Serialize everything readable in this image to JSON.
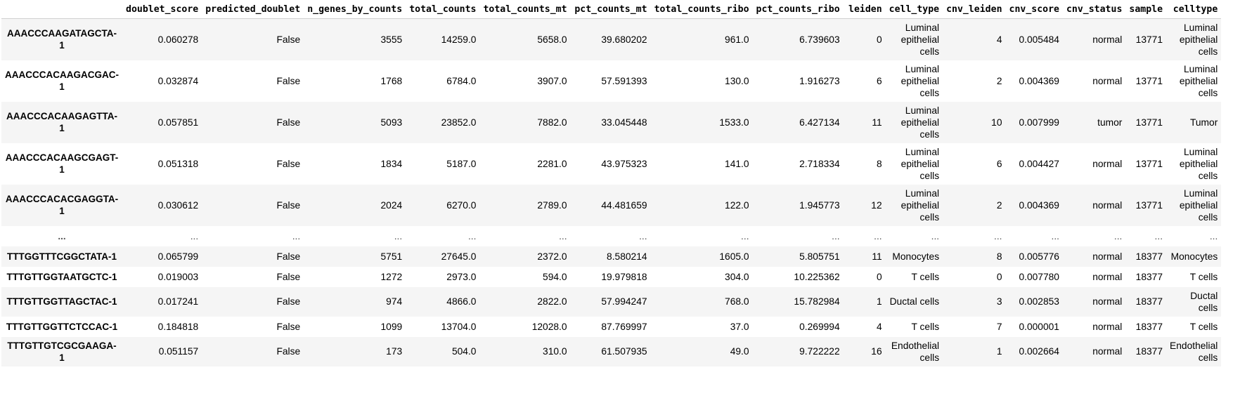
{
  "columns": [
    "",
    "doublet_score",
    "predicted_doublet",
    "n_genes_by_counts",
    "total_counts",
    "total_counts_mt",
    "pct_counts_mt",
    "total_counts_ribo",
    "pct_counts_ribo",
    "leiden",
    "cell_type",
    "cnv_leiden",
    "cnv_score",
    "cnv_status",
    "sample",
    "celltype"
  ],
  "rows": [
    {
      "index": "AAACCCAAGATAGCTA-1",
      "cells": [
        "0.060278",
        "False",
        "3555",
        "14259.0",
        "5658.0",
        "39.680202",
        "961.0",
        "6.739603",
        "0",
        "Luminal epithelial cells",
        "4",
        "0.005484",
        "normal",
        "13771",
        "Luminal epithelial cells"
      ]
    },
    {
      "index": "AAACCCACAAGACGAC-1",
      "cells": [
        "0.032874",
        "False",
        "1768",
        "6784.0",
        "3907.0",
        "57.591393",
        "130.0",
        "1.916273",
        "6",
        "Luminal epithelial cells",
        "2",
        "0.004369",
        "normal",
        "13771",
        "Luminal epithelial cells"
      ]
    },
    {
      "index": "AAACCCACAAGAGTTA-1",
      "cells": [
        "0.057851",
        "False",
        "5093",
        "23852.0",
        "7882.0",
        "33.045448",
        "1533.0",
        "6.427134",
        "11",
        "Luminal epithelial cells",
        "10",
        "0.007999",
        "tumor",
        "13771",
        "Tumor"
      ]
    },
    {
      "index": "AAACCCACAAGCGAGT-1",
      "cells": [
        "0.051318",
        "False",
        "1834",
        "5187.0",
        "2281.0",
        "43.975323",
        "141.0",
        "2.718334",
        "8",
        "Luminal epithelial cells",
        "6",
        "0.004427",
        "normal",
        "13771",
        "Luminal epithelial cells"
      ]
    },
    {
      "index": "AAACCCACACGAGGTA-1",
      "cells": [
        "0.030612",
        "False",
        "2024",
        "6270.0",
        "2789.0",
        "44.481659",
        "122.0",
        "1.945773",
        "12",
        "Luminal epithelial cells",
        "2",
        "0.004369",
        "normal",
        "13771",
        "Luminal epithelial cells"
      ]
    },
    {
      "index": "...",
      "cells": [
        "...",
        "...",
        "...",
        "...",
        "...",
        "...",
        "...",
        "...",
        "...",
        "...",
        "...",
        "...",
        "...",
        "...",
        "..."
      ]
    },
    {
      "index": "TTTGGTTTCGGCTATA-1",
      "cells": [
        "0.065799",
        "False",
        "5751",
        "27645.0",
        "2372.0",
        "8.580214",
        "1605.0",
        "5.805751",
        "11",
        "Monocytes",
        "8",
        "0.005776",
        "normal",
        "18377",
        "Monocytes"
      ]
    },
    {
      "index": "TTTGTTGGTAATGCTC-1",
      "cells": [
        "0.019003",
        "False",
        "1272",
        "2973.0",
        "594.0",
        "19.979818",
        "304.0",
        "10.225362",
        "0",
        "T cells",
        "0",
        "0.007780",
        "normal",
        "18377",
        "T cells"
      ]
    },
    {
      "index": "TTTGTTGGTTAGCTAC-1",
      "cells": [
        "0.017241",
        "False",
        "974",
        "4866.0",
        "2822.0",
        "57.994247",
        "768.0",
        "15.782984",
        "1",
        "Ductal cells",
        "3",
        "0.002853",
        "normal",
        "18377",
        "Ductal cells"
      ]
    },
    {
      "index": "TTTGTTGGTTCTCCAC-1",
      "cells": [
        "0.184818",
        "False",
        "1099",
        "13704.0",
        "12028.0",
        "87.769997",
        "37.0",
        "0.269994",
        "4",
        "T cells",
        "7",
        "0.000001",
        "normal",
        "18377",
        "T cells"
      ]
    },
    {
      "index": "TTTGTTGTCGCGAAGA-1",
      "cells": [
        "0.051157",
        "False",
        "173",
        "504.0",
        "310.0",
        "61.507935",
        "49.0",
        "9.722222",
        "16",
        "Endothelial cells",
        "1",
        "0.002664",
        "normal",
        "18377",
        "Endothelial cells"
      ]
    }
  ]
}
